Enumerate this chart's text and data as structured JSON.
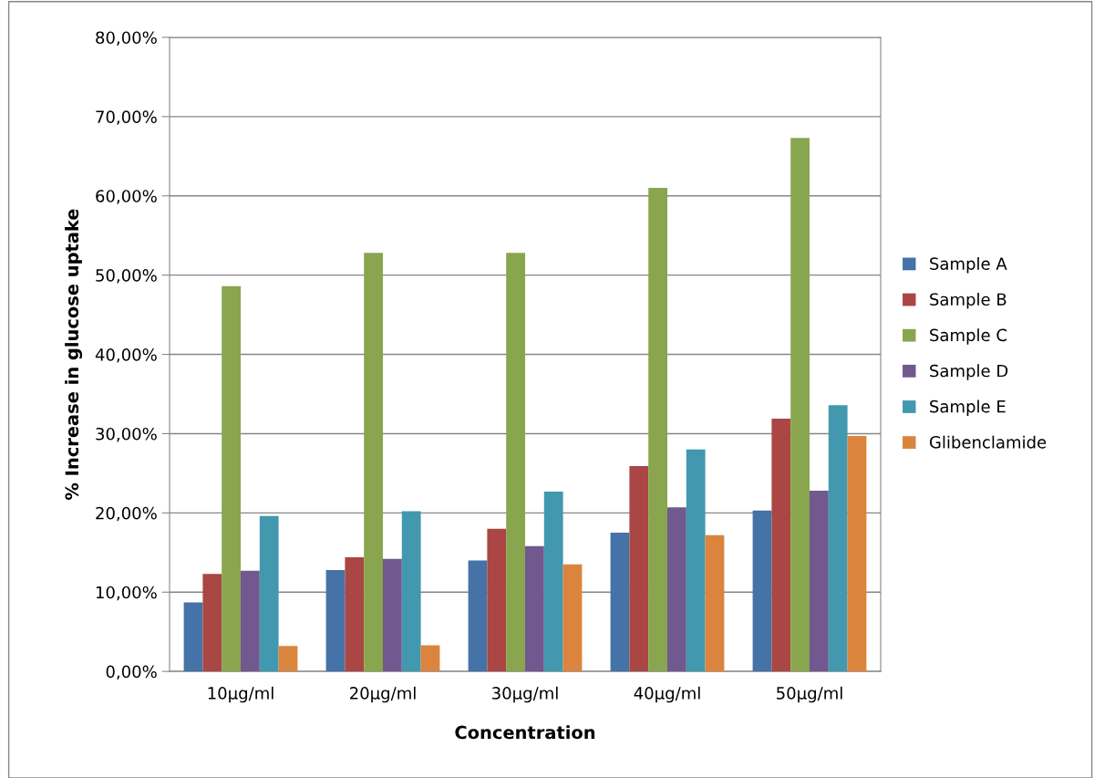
{
  "chart_data": {
    "type": "bar",
    "xlabel": "Concentration",
    "ylabel": "% Increase in glucose uptake",
    "categories": [
      "10µg/ml",
      "20µg/ml",
      "30µg/ml",
      "40µg/ml",
      "50µg/ml"
    ],
    "series": [
      {
        "name": "Sample A",
        "color": "#4572a7",
        "values": [
          8.7,
          12.8,
          14.0,
          17.5,
          20.3
        ]
      },
      {
        "name": "Sample B",
        "color": "#aa4643",
        "values": [
          12.3,
          14.4,
          18.0,
          25.9,
          31.9
        ]
      },
      {
        "name": "Sample C",
        "color": "#89a54e",
        "values": [
          48.6,
          52.8,
          52.8,
          61.0,
          67.3
        ]
      },
      {
        "name": "Sample D",
        "color": "#71588f",
        "values": [
          12.7,
          14.2,
          15.8,
          20.7,
          22.8
        ]
      },
      {
        "name": "Sample E",
        "color": "#4198af",
        "values": [
          19.6,
          20.2,
          22.7,
          28.0,
          33.6
        ]
      },
      {
        "name": "Glibenclamide",
        "color": "#db843d",
        "values": [
          3.2,
          3.3,
          13.5,
          17.2,
          29.7
        ]
      }
    ],
    "ylim": [
      0,
      80
    ],
    "yticks": [
      {
        "value": 0,
        "label": "0,00%"
      },
      {
        "value": 10,
        "label": "10,00%"
      },
      {
        "value": 20,
        "label": "20,00%"
      },
      {
        "value": 30,
        "label": "30,00%"
      },
      {
        "value": 40,
        "label": "40,00%"
      },
      {
        "value": 50,
        "label": "50,00%"
      },
      {
        "value": 60,
        "label": "60,00%"
      },
      {
        "value": 70,
        "label": "70,00%"
      },
      {
        "value": 80,
        "label": "80,00%"
      }
    ],
    "grid": "y",
    "legend": "right"
  }
}
